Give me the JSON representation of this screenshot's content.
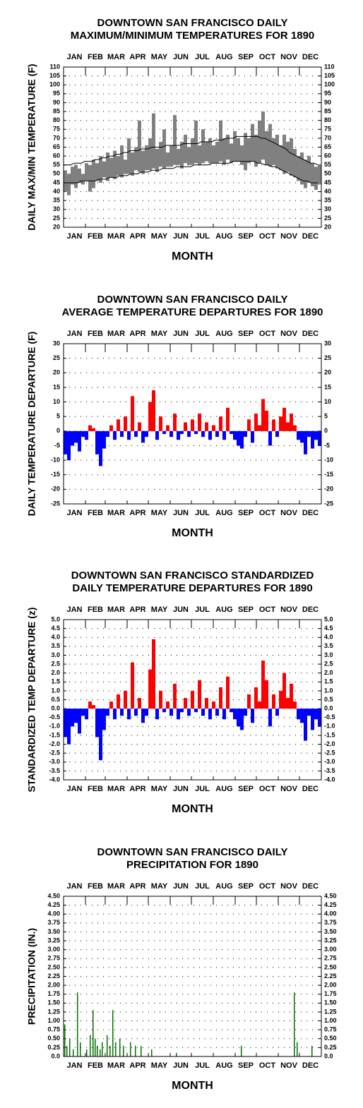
{
  "chart_data": [
    {
      "type": "hilo_line",
      "title": [
        "DOWNTOWN SAN FRANCISCO DAILY",
        "MAXIMUM/MINIMUM TEMPERATURES FOR 1890"
      ],
      "y_label": "DAILY MAX/MIN TEMPERATURE (F)",
      "x_label": "MONTH",
      "months": [
        "JAN",
        "FEB",
        "MAR",
        "APR",
        "MAY",
        "JUN",
        "JUL",
        "AUG",
        "SEP",
        "OCT",
        "NOV",
        "DEC"
      ],
      "xlim": [
        1,
        366
      ],
      "xticks": [
        1,
        32,
        60,
        91,
        121,
        152,
        182,
        213,
        244,
        274,
        305,
        335,
        366
      ],
      "ylim": [
        20,
        110
      ],
      "yticks": [
        20,
        25,
        30,
        35,
        40,
        45,
        50,
        55,
        60,
        65,
        70,
        75,
        80,
        85,
        90,
        95,
        100,
        105,
        110
      ],
      "grid": true,
      "x": [
        1,
        6,
        11,
        16,
        21,
        26,
        31,
        36,
        41,
        46,
        51,
        56,
        61,
        66,
        71,
        76,
        81,
        86,
        91,
        96,
        101,
        106,
        111,
        116,
        121,
        126,
        131,
        136,
        141,
        146,
        151,
        156,
        161,
        166,
        171,
        176,
        181,
        186,
        191,
        196,
        201,
        206,
        211,
        216,
        221,
        226,
        231,
        236,
        241,
        246,
        251,
        256,
        261,
        266,
        271,
        276,
        281,
        286,
        291,
        296,
        301,
        306,
        311,
        316,
        321,
        326,
        331,
        336,
        341,
        346,
        351,
        356,
        361
      ],
      "series": [
        {
          "color": "#808080",
          "values": [
            52,
            50,
            54,
            55,
            53,
            50,
            56,
            55,
            58,
            56,
            60,
            57,
            62,
            59,
            63,
            60,
            66,
            58,
            70,
            62,
            65,
            80,
            63,
            66,
            70,
            84,
            64,
            68,
            75,
            62,
            66,
            83,
            64,
            68,
            72,
            65,
            70,
            80,
            66,
            75,
            68,
            70,
            66,
            68,
            80,
            70,
            72,
            67,
            74,
            70,
            66,
            73,
            70,
            78,
            72,
            80,
            85,
            74,
            78,
            70,
            72,
            66,
            72,
            68,
            70,
            64,
            60,
            62,
            58,
            60,
            56,
            54,
            55
          ]
        },
        {
          "color": "#808080",
          "values": [
            40,
            38,
            44,
            42,
            45,
            44,
            46,
            40,
            42,
            46,
            45,
            48,
            46,
            48,
            47,
            49,
            48,
            50,
            50,
            49,
            52,
            51,
            50,
            52,
            52,
            53,
            51,
            54,
            53,
            54,
            54,
            55,
            55,
            53,
            56,
            55,
            55,
            56,
            55,
            56,
            57,
            56,
            56,
            56,
            57,
            55,
            58,
            56,
            57,
            57,
            55,
            52,
            56,
            57,
            54,
            56,
            58,
            55,
            54,
            55,
            53,
            52,
            50,
            51,
            49,
            48,
            46,
            44,
            42,
            45,
            43,
            41,
            44
          ]
        },
        {
          "color": "#000000",
          "values": [
            55,
            55,
            55,
            56,
            56,
            56,
            57,
            57,
            57,
            58,
            58,
            59,
            59,
            60,
            60,
            61,
            61,
            62,
            62,
            63,
            63,
            63,
            64,
            64,
            64,
            65,
            65,
            65,
            65,
            66,
            66,
            66,
            66,
            66,
            67,
            67,
            67,
            67,
            67,
            68,
            68,
            68,
            68,
            69,
            69,
            69,
            70,
            70,
            70,
            71,
            71,
            71,
            71,
            71,
            71,
            71,
            70,
            70,
            69,
            68,
            67,
            66,
            65,
            64,
            62,
            61,
            60,
            59,
            58,
            57,
            56,
            56,
            55
          ]
        },
        {
          "color": "#000000",
          "values": [
            45,
            45,
            45,
            45,
            45,
            46,
            46,
            46,
            46,
            46,
            47,
            47,
            47,
            48,
            48,
            48,
            49,
            49,
            49,
            50,
            50,
            50,
            51,
            51,
            51,
            52,
            52,
            52,
            53,
            53,
            53,
            53,
            54,
            54,
            54,
            54,
            54,
            55,
            55,
            55,
            55,
            55,
            56,
            56,
            56,
            56,
            56,
            56,
            57,
            57,
            57,
            57,
            57,
            57,
            57,
            56,
            56,
            55,
            55,
            54,
            54,
            53,
            52,
            51,
            50,
            49,
            48,
            47,
            46,
            46,
            45,
            45,
            45
          ]
        }
      ]
    },
    {
      "type": "bar",
      "title": [
        "DOWNTOWN SAN FRANCISCO DAILY",
        "AVERAGE TEMPERATURE DEPARTURES FOR 1890"
      ],
      "y_label": "DAILY TEMPERATURE DEPARTURE (F)",
      "x_label": "MONTH",
      "months": [
        "JAN",
        "FEB",
        "MAR",
        "APR",
        "MAY",
        "JUN",
        "JUL",
        "AUG",
        "SEP",
        "OCT",
        "NOV",
        "DEC"
      ],
      "xlim": [
        1,
        366
      ],
      "xticks": [
        1,
        32,
        60,
        91,
        121,
        152,
        182,
        213,
        244,
        274,
        305,
        335,
        366
      ],
      "ylim": [
        -25,
        30
      ],
      "yticks": [
        -25,
        -20,
        -15,
        -10,
        -5,
        0,
        5,
        10,
        15,
        20,
        25,
        30
      ],
      "grid": true,
      "pos_color": "#ff0000",
      "neg_color": "#0000ff",
      "bar_days": 5,
      "x": [
        1,
        6,
        11,
        16,
        21,
        26,
        31,
        36,
        41,
        46,
        51,
        56,
        61,
        66,
        71,
        76,
        81,
        86,
        91,
        96,
        101,
        106,
        111,
        116,
        121,
        126,
        131,
        136,
        141,
        146,
        151,
        156,
        161,
        166,
        171,
        176,
        181,
        186,
        191,
        196,
        201,
        206,
        211,
        216,
        221,
        226,
        231,
        236,
        241,
        246,
        251,
        256,
        261,
        266,
        271,
        276,
        281,
        286,
        291,
        296,
        301,
        306,
        311,
        316,
        321,
        326,
        331,
        336,
        341,
        346,
        351,
        356,
        361
      ],
      "values": [
        -8,
        -10,
        -5,
        -4,
        -7,
        -2,
        -3,
        2,
        1,
        -8,
        -12,
        -6,
        -2,
        2,
        -3,
        4,
        -2,
        5,
        -3,
        12,
        -2,
        3,
        -4,
        -2,
        10,
        14,
        -3,
        5,
        -1,
        2,
        -2,
        6,
        -3,
        -1,
        3,
        -2,
        4,
        -1,
        6,
        -2,
        3,
        -3,
        2,
        -2,
        5,
        -3,
        8,
        -1,
        -3,
        -5,
        -6,
        -2,
        4,
        -4,
        6,
        2,
        11,
        7,
        -5,
        4,
        -2,
        5,
        8,
        3,
        6,
        2,
        -3,
        -4,
        -8,
        -2,
        -6,
        -3,
        -5
      ]
    },
    {
      "type": "bar",
      "title": [
        "DOWNTOWN SAN FRANCISCO STANDARDIZED",
        "DAILY TEMPERATURE DEPARTURES FOR 1890"
      ],
      "y_label": "STANDARDIZED TEMP DEPARTURE (z)",
      "x_label": "MONTH",
      "months": [
        "JAN",
        "FEB",
        "MAR",
        "APR",
        "MAY",
        "JUN",
        "JUL",
        "AUG",
        "SEP",
        "OCT",
        "NOV",
        "DEC"
      ],
      "xlim": [
        1,
        366
      ],
      "xticks": [
        1,
        32,
        60,
        91,
        121,
        152,
        182,
        213,
        244,
        274,
        305,
        335,
        366
      ],
      "ylim": [
        -4,
        5
      ],
      "yticks": [
        {
          "value": -4,
          "label": "-4.0"
        },
        -3.5,
        {
          "value": -3,
          "label": "-3.0"
        },
        -2.5,
        {
          "value": -2,
          "label": "-2.0"
        },
        -1.5,
        {
          "value": -1,
          "label": "-1.0"
        },
        -0.5,
        {
          "value": 0,
          "label": "0.0"
        },
        0.5,
        {
          "value": 1,
          "label": "1.0"
        },
        1.5,
        {
          "value": 2,
          "label": "2.0"
        },
        2.5,
        {
          "value": 3,
          "label": "3.0"
        },
        3.5,
        {
          "value": 4,
          "label": "4.0"
        },
        4.5,
        {
          "value": 5,
          "label": "5.0"
        }
      ],
      "grid": true,
      "pos_color": "#ff0000",
      "neg_color": "#0000ff",
      "bar_days": 5,
      "x": [
        1,
        6,
        11,
        16,
        21,
        26,
        31,
        36,
        41,
        46,
        51,
        56,
        61,
        66,
        71,
        76,
        81,
        86,
        91,
        96,
        101,
        106,
        111,
        116,
        121,
        126,
        131,
        136,
        141,
        146,
        151,
        156,
        161,
        166,
        171,
        176,
        181,
        186,
        191,
        196,
        201,
        206,
        211,
        216,
        221,
        226,
        231,
        236,
        241,
        246,
        251,
        256,
        261,
        266,
        271,
        276,
        281,
        286,
        291,
        296,
        301,
        306,
        311,
        316,
        321,
        326,
        331,
        336,
        341,
        346,
        351,
        356,
        361
      ],
      "values": [
        -1.6,
        -2.0,
        -1.0,
        -0.8,
        -1.4,
        -0.4,
        -0.6,
        0.4,
        0.2,
        -1.6,
        -2.9,
        -1.2,
        -0.4,
        0.4,
        -0.6,
        0.8,
        -0.4,
        1.0,
        -0.6,
        2.6,
        -0.4,
        0.6,
        -0.8,
        -0.4,
        2.2,
        3.9,
        -0.6,
        1.0,
        -0.2,
        0.4,
        -0.4,
        1.4,
        -0.6,
        -0.2,
        0.6,
        -0.4,
        1.0,
        -0.2,
        1.6,
        -0.4,
        0.6,
        -0.6,
        0.4,
        -0.4,
        1.2,
        -0.6,
        1.8,
        -0.2,
        -0.6,
        -1.0,
        -1.2,
        -0.4,
        0.8,
        -0.8,
        1.2,
        0.4,
        2.7,
        1.6,
        -1.0,
        0.8,
        -0.4,
        1.0,
        2.0,
        0.6,
        1.4,
        0.4,
        -0.6,
        -0.8,
        -1.8,
        -0.4,
        -1.2,
        -0.6,
        -1.0
      ]
    },
    {
      "type": "bar",
      "title": [
        "DOWNTOWN SAN FRANCISCO DAILY",
        "PRECIPITATION FOR 1890"
      ],
      "y_label": "PRECIPITATION (IN.)",
      "x_label": "MONTH",
      "months": [
        "JAN",
        "FEB",
        "MAR",
        "APR",
        "MAY",
        "JUN",
        "JUL",
        "AUG",
        "SEP",
        "OCT",
        "NOV",
        "DEC"
      ],
      "xlim": [
        1,
        366
      ],
      "xticks": [
        1,
        32,
        60,
        91,
        121,
        152,
        182,
        213,
        244,
        274,
        305,
        335,
        366
      ],
      "ylim": [
        0,
        4.5
      ],
      "yticks": [
        {
          "value": 0,
          "label": "0.0"
        },
        0.25,
        {
          "value": 0.5,
          "label": "0.50"
        },
        0.75,
        {
          "value": 1,
          "label": "1.00"
        },
        1.25,
        {
          "value": 1.5,
          "label": "1.50"
        },
        1.75,
        {
          "value": 2,
          "label": "2.00"
        },
        2.25,
        {
          "value": 2.5,
          "label": "2.50"
        },
        2.75,
        {
          "value": 3,
          "label": "3.00"
        },
        3.25,
        {
          "value": 3.5,
          "label": "3.50"
        },
        3.75,
        {
          "value": 4,
          "label": "4.00"
        },
        4.25,
        {
          "value": 4.5,
          "label": "4.50"
        }
      ],
      "grid": true,
      "pos_color": "#007000",
      "neg_color": "#007000",
      "bar_days": 1,
      "x": [
        2,
        5,
        9,
        14,
        20,
        24,
        33,
        38,
        42,
        45,
        48,
        52,
        55,
        62,
        66,
        70,
        74,
        80,
        85,
        95,
        102,
        110,
        125,
        160,
        252,
        327,
        331,
        352
      ],
      "values": [
        0.9,
        0.3,
        0.5,
        0.2,
        1.8,
        0.4,
        0.2,
        0.6,
        1.3,
        0.5,
        0.3,
        0.2,
        0.4,
        0.6,
        0.3,
        1.3,
        0.4,
        0.5,
        0.3,
        0.4,
        0.3,
        0.3,
        0.2,
        0.1,
        0.3,
        1.8,
        0.4,
        0.3
      ]
    }
  ]
}
